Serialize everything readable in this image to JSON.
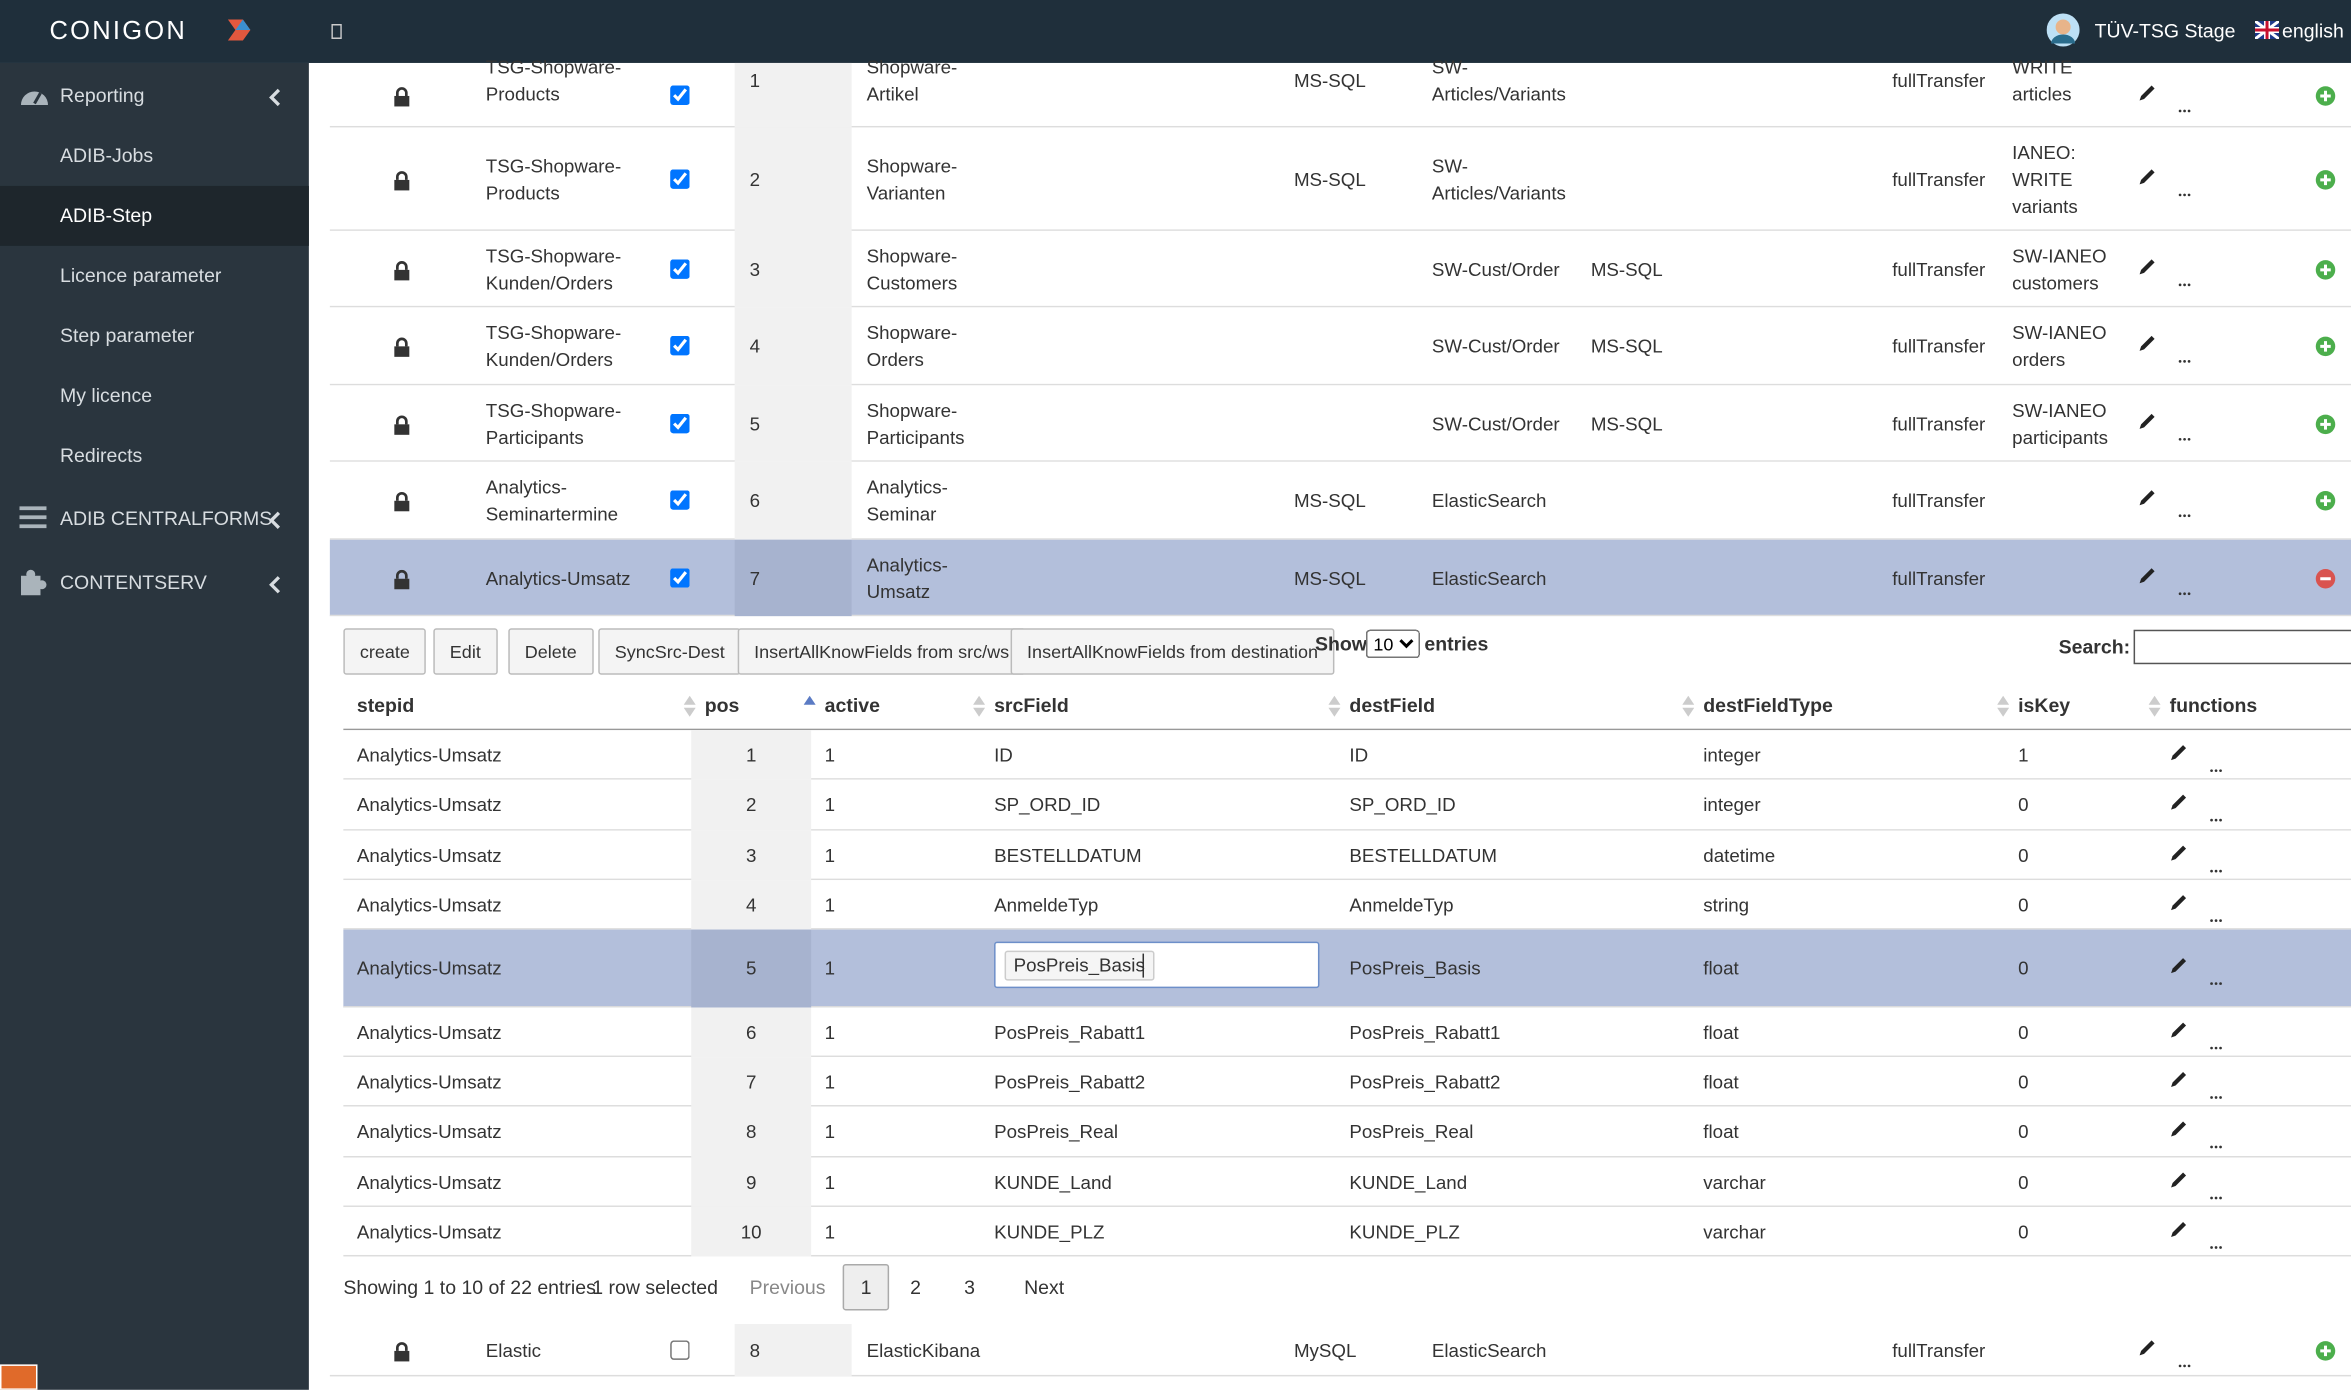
{
  "header": {
    "logo": "CONIGON",
    "user": "TÜV-TSG Stage",
    "language": "english"
  },
  "sidebar": {
    "items": [
      {
        "label": "Reporting",
        "level": 0,
        "icon": "gauge"
      },
      {
        "label": "ADIB-Jobs",
        "level": 1
      },
      {
        "label": "ADIB-Step",
        "level": 1,
        "active": true
      },
      {
        "label": "Licence parameter",
        "level": 1
      },
      {
        "label": "Step parameter",
        "level": 1
      },
      {
        "label": "My licence",
        "level": 1
      },
      {
        "label": "Redirects",
        "level": 1
      },
      {
        "label": "ADIB CENTRALFORMS",
        "level": 0,
        "icon": "bars"
      },
      {
        "label": "CONTENTSERV",
        "level": 0,
        "icon": "puzzle"
      }
    ]
  },
  "steps": {
    "rows": [
      {
        "step": "TSG-Shopware-Products",
        "active": true,
        "pos": 1,
        "source": "Shopware-Artikel",
        "srcType": "MS-SQL",
        "dest": "SW-Articles/Variants",
        "mode": "fullTransfer",
        "note": "WRITE articles"
      },
      {
        "step": "TSG-Shopware-Products",
        "active": true,
        "pos": 2,
        "source": "Shopware-Varianten",
        "srcType": "MS-SQL",
        "dest": "SW-Articles/Variants",
        "mode": "fullTransfer",
        "note": "IANEO: WRITE variants"
      },
      {
        "step": "TSG-Shopware-Kunden/Orders",
        "active": true,
        "pos": 3,
        "source": "Shopware-Customers",
        "dest": "SW-Cust/Order",
        "destType": "MS-SQL",
        "mode": "fullTransfer",
        "note": "SW-IANEO customers"
      },
      {
        "step": "TSG-Shopware-Kunden/Orders",
        "active": true,
        "pos": 4,
        "source": "Shopware-Orders",
        "dest": "SW-Cust/Order",
        "destType": "MS-SQL",
        "mode": "fullTransfer",
        "note": "SW-IANEO orders"
      },
      {
        "step": "TSG-Shopware-Participants",
        "active": true,
        "pos": 5,
        "source": "Shopware-Participants",
        "dest": "SW-Cust/Order",
        "destType": "MS-SQL",
        "mode": "fullTransfer",
        "note": "SW-IANEO participants"
      },
      {
        "step": "Analytics-Seminartermine",
        "active": true,
        "pos": 6,
        "source": "Analytics-Seminar",
        "srcType": "MS-SQL",
        "dest": "ElasticSearch",
        "mode": "fullTransfer"
      },
      {
        "step": "Analytics-Umsatz",
        "active": true,
        "pos": 7,
        "source": "Analytics-Umsatz",
        "srcType": "MS-SQL",
        "dest": "ElasticSearch",
        "mode": "fullTransfer",
        "selected": true
      },
      {
        "step": "Elastic",
        "active": false,
        "pos": 8,
        "source": "ElasticKibana",
        "srcType": "MySQL",
        "dest": "ElasticSearch",
        "mode": "fullTransfer"
      }
    ]
  },
  "fields": {
    "buttons": [
      "create",
      "Edit",
      "Delete",
      "SyncSrc-Dest",
      "InsertAllKnowFields from src/ws",
      "InsertAllKnowFields from destination"
    ],
    "show_label": "Show",
    "page_size": "10",
    "entries_label": "entries",
    "search_label": "Search:",
    "columns": [
      "stepid",
      "pos",
      "active",
      "srcField",
      "destField",
      "destFieldType",
      "isKey",
      "functions"
    ],
    "rows": [
      [
        "Analytics-Umsatz",
        1,
        1,
        "ID",
        "ID",
        "integer",
        1
      ],
      [
        "Analytics-Umsatz",
        2,
        1,
        "SP_ORD_ID",
        "SP_ORD_ID",
        "integer",
        0
      ],
      [
        "Analytics-Umsatz",
        3,
        1,
        "BESTELLDATUM",
        "BESTELLDATUM",
        "datetime",
        0
      ],
      [
        "Analytics-Umsatz",
        4,
        1,
        "AnmeldeTyp",
        "AnmeldeTyp",
        "string",
        0
      ],
      [
        "Analytics-Umsatz",
        5,
        1,
        "PosPreis_Basis",
        "PosPreis_Basis",
        "float",
        0
      ],
      [
        "Analytics-Umsatz",
        6,
        1,
        "PosPreis_Rabatt1",
        "PosPreis_Rabatt1",
        "float",
        0
      ],
      [
        "Analytics-Umsatz",
        7,
        1,
        "PosPreis_Rabatt2",
        "PosPreis_Rabatt2",
        "float",
        0
      ],
      [
        "Analytics-Umsatz",
        8,
        1,
        "PosPreis_Real",
        "PosPreis_Real",
        "float",
        0
      ],
      [
        "Analytics-Umsatz",
        9,
        1,
        "KUNDE_Land",
        "KUNDE_Land",
        "varchar",
        0
      ],
      [
        "Analytics-Umsatz",
        10,
        1,
        "KUNDE_PLZ",
        "KUNDE_PLZ",
        "varchar",
        0
      ]
    ],
    "selected_row": 5,
    "info": "Showing 1 to 10 of 22 entries",
    "selection_info": "1 row selected",
    "pagination": [
      "Previous",
      "1",
      "2",
      "3",
      "Next"
    ],
    "current_page": "1"
  }
}
